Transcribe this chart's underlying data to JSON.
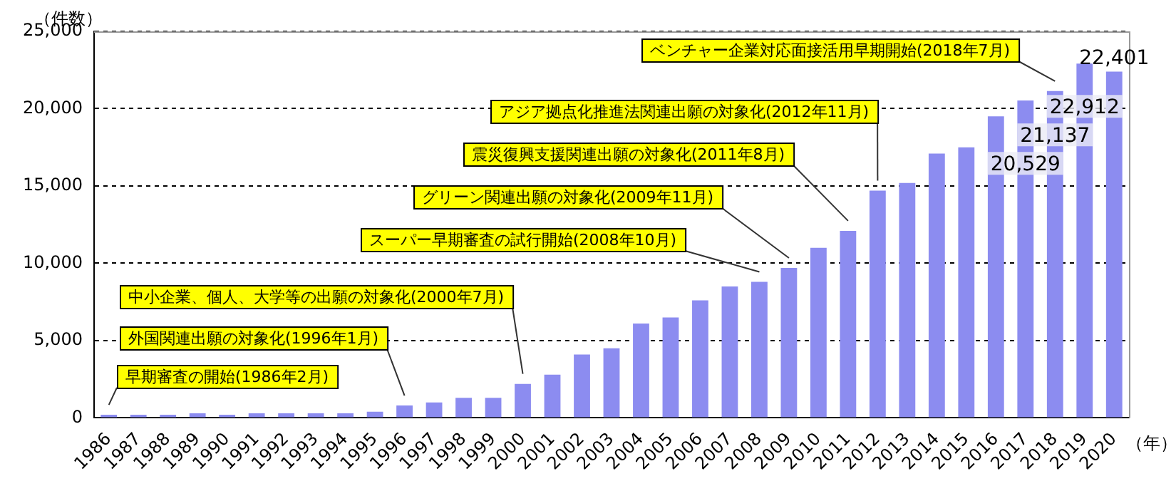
{
  "chart_data": {
    "type": "bar",
    "ylabel": "（件数）",
    "xlabel": "（年）",
    "categories": [
      "1986",
      "1987",
      "1988",
      "1989",
      "1990",
      "1991",
      "1992",
      "1993",
      "1994",
      "1995",
      "1996",
      "1997",
      "1998",
      "1999",
      "2000",
      "2001",
      "2002",
      "2003",
      "2004",
      "2005",
      "2006",
      "2007",
      "2008",
      "2009",
      "2010",
      "2011",
      "2012",
      "2013",
      "2014",
      "2015",
      "2016",
      "2017",
      "2018",
      "2019",
      "2020"
    ],
    "values": [
      200,
      200,
      200,
      300,
      200,
      300,
      300,
      300,
      300,
      400,
      800,
      1000,
      1300,
      1300,
      2200,
      2800,
      4100,
      4500,
      6100,
      6500,
      7600,
      8500,
      8800,
      9700,
      11000,
      12100,
      14700,
      15200,
      17100,
      17500,
      19500,
      20529,
      21137,
      22912,
      22401
    ],
    "value_labels": [
      null,
      null,
      null,
      null,
      null,
      null,
      null,
      null,
      null,
      null,
      null,
      null,
      null,
      null,
      null,
      null,
      null,
      null,
      null,
      null,
      null,
      null,
      null,
      null,
      null,
      null,
      null,
      null,
      null,
      null,
      null,
      "20,529",
      "21,137",
      "22,912",
      "22,401"
    ],
    "color": "#8c8cf0",
    "ylim": [
      0,
      25000
    ],
    "yticks": [
      0,
      {
        "value": 5000,
        "label": "5,000"
      },
      {
        "value": 10000,
        "label": "10,000"
      },
      {
        "value": 15000,
        "label": "15,000"
      },
      {
        "value": 20000,
        "label": "20,000"
      },
      {
        "value": 25000,
        "label": "25,000"
      }
    ],
    "grid": "y",
    "annotations": [
      {
        "text": "早期審査の開始(1986年2月)",
        "x": "1986",
        "y": 200
      },
      {
        "text": "外国関連出願の対象化(1996年1月)",
        "x": "1996",
        "y": 800
      },
      {
        "text": "中小企業、個人、大学等の出願の対象化(2000年7月)",
        "x": "2000",
        "y": 2200
      },
      {
        "text": "スーパー早期審査の試行開始(2008年10月)",
        "x": "2008",
        "y": 8800
      },
      {
        "text": "グリーン関連出願の対象化(2009年11月)",
        "x": "2009",
        "y": 9700
      },
      {
        "text": "震災復興支援関連出願の対象化(2011年8月)",
        "x": "2011",
        "y": 12100
      },
      {
        "text": "アジア拠点化推進法関連出願の対象化(2012年11月)",
        "x": "2012",
        "y": 14700
      },
      {
        "text": "ベンチャー企業対応面接活用早期開始(2018年7月)",
        "x": "2018",
        "y": 21137
      }
    ]
  }
}
